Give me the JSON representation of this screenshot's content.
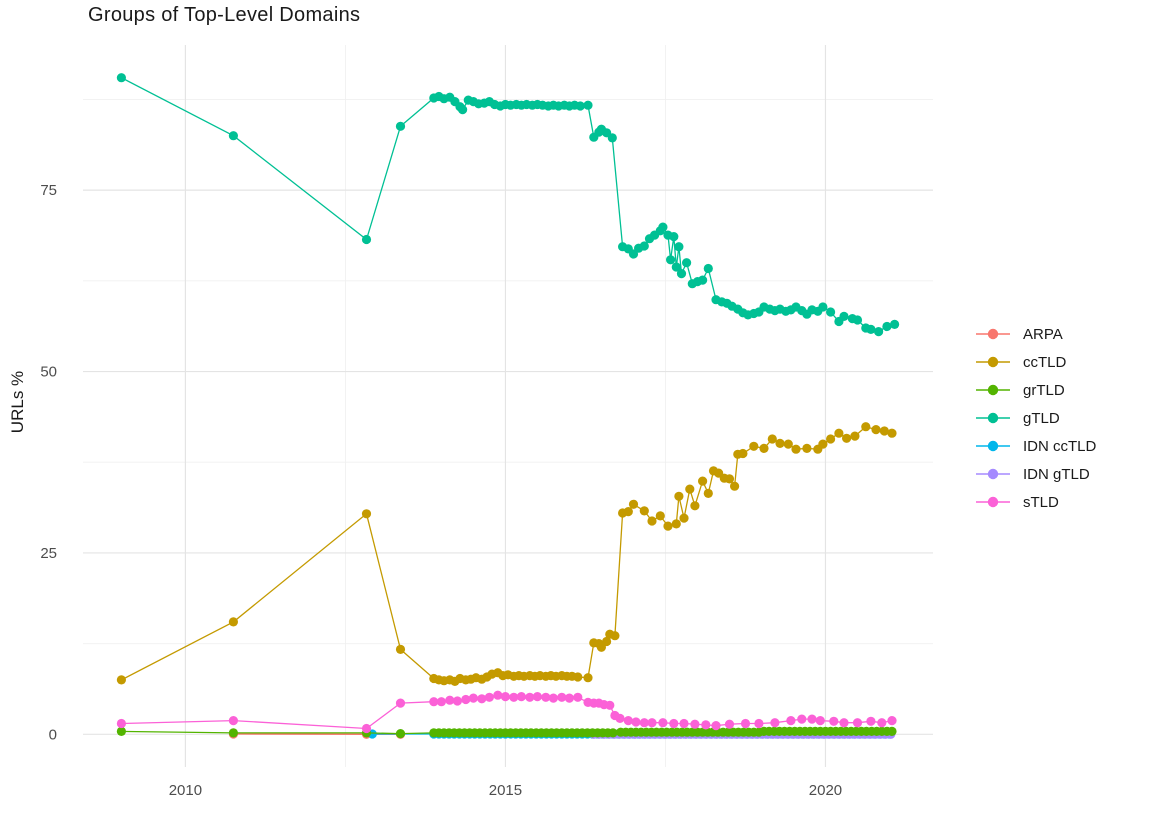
{
  "figure": {
    "background": "#FFFFFF",
    "panel_background": "#FFFFFF"
  },
  "chart_data": {
    "type": "line",
    "title": "Groups of Top-Level Domains",
    "xlabel": "",
    "ylabel": "URLs %",
    "x_ticks": [
      2010,
      2015,
      2020
    ],
    "x_minor_ticks": [
      2012.5,
      2017.5
    ],
    "y_ticks": [
      0,
      25,
      50,
      75
    ],
    "y_minor_ticks": [
      12.5,
      37.5,
      62.5,
      87.5
    ],
    "xlim": [
      2008.4,
      2021.68
    ],
    "ylim": [
      -4.5,
      95.0
    ],
    "grid": "major-and-minor",
    "grid_major_color": "#E4E4E4",
    "grid_minor_color": "#F0F0F0",
    "tick_label_color": "#4D4D4D",
    "legend_position": "right",
    "point_radius": 4.6,
    "draw_order": [
      "ARPA",
      "IDN ccTLD",
      "IDN gTLD",
      "grTLD",
      "ccTLD",
      "gTLD",
      "sTLD"
    ],
    "series": [
      {
        "name": "ARPA",
        "color": "#F8766D",
        "points": [
          [
            2010.75,
            0.05
          ],
          [
            2012.83,
            0.0
          ],
          [
            2013.36,
            0.0
          ]
        ]
      },
      {
        "name": "ccTLD",
        "color": "#C49A00",
        "points": [
          [
            2009,
            7.5
          ],
          [
            2010.75,
            15.5
          ],
          [
            2012.83,
            30.4
          ],
          [
            2013.36,
            11.7
          ],
          [
            2013.88,
            7.7
          ],
          [
            2013.96,
            7.5
          ],
          [
            2014.04,
            7.4
          ],
          [
            2014.13,
            7.5
          ],
          [
            2014.21,
            7.3
          ],
          [
            2014.29,
            7.7
          ],
          [
            2014.38,
            7.5
          ],
          [
            2014.46,
            7.6
          ],
          [
            2014.54,
            7.8
          ],
          [
            2014.63,
            7.6
          ],
          [
            2014.71,
            7.9
          ],
          [
            2014.79,
            8.3
          ],
          [
            2014.88,
            8.5
          ],
          [
            2014.96,
            8.1
          ],
          [
            2015.04,
            8.2
          ],
          [
            2015.13,
            8.0
          ],
          [
            2015.21,
            8.1
          ],
          [
            2015.29,
            8.0
          ],
          [
            2015.38,
            8.1
          ],
          [
            2015.46,
            8.0
          ],
          [
            2015.54,
            8.1
          ],
          [
            2015.63,
            8.0
          ],
          [
            2015.71,
            8.1
          ],
          [
            2015.79,
            8.0
          ],
          [
            2015.88,
            8.1
          ],
          [
            2015.96,
            8.0
          ],
          [
            2016.04,
            8.0
          ],
          [
            2016.13,
            7.9
          ],
          [
            2016.29,
            7.8
          ],
          [
            2016.38,
            12.6
          ],
          [
            2016.46,
            12.5
          ],
          [
            2016.5,
            12.0
          ],
          [
            2016.58,
            12.8
          ],
          [
            2016.63,
            13.8
          ],
          [
            2016.71,
            13.6
          ],
          [
            2016.83,
            30.5
          ],
          [
            2016.92,
            30.7
          ],
          [
            2017.0,
            31.7
          ],
          [
            2017.17,
            30.8
          ],
          [
            2017.29,
            29.4
          ],
          [
            2017.42,
            30.1
          ],
          [
            2017.54,
            28.7
          ],
          [
            2017.67,
            29.0
          ],
          [
            2017.71,
            32.8
          ],
          [
            2017.79,
            29.8
          ],
          [
            2017.88,
            33.8
          ],
          [
            2017.96,
            31.5
          ],
          [
            2018.08,
            34.9
          ],
          [
            2018.17,
            33.2
          ],
          [
            2018.25,
            36.3
          ],
          [
            2018.33,
            36.0
          ],
          [
            2018.42,
            35.3
          ],
          [
            2018.5,
            35.2
          ],
          [
            2018.58,
            34.2
          ],
          [
            2018.63,
            38.6
          ],
          [
            2018.71,
            38.7
          ],
          [
            2018.88,
            39.7
          ],
          [
            2019.04,
            39.4
          ],
          [
            2019.17,
            40.7
          ],
          [
            2019.29,
            40.1
          ],
          [
            2019.42,
            40.0
          ],
          [
            2019.54,
            39.3
          ],
          [
            2019.71,
            39.4
          ],
          [
            2019.88,
            39.3
          ],
          [
            2019.96,
            40.0
          ],
          [
            2020.08,
            40.7
          ],
          [
            2020.21,
            41.5
          ],
          [
            2020.33,
            40.8
          ],
          [
            2020.46,
            41.1
          ],
          [
            2020.63,
            42.4
          ],
          [
            2020.79,
            42.0
          ],
          [
            2020.92,
            41.8
          ],
          [
            2021.04,
            41.5
          ]
        ]
      },
      {
        "name": "grTLD",
        "color": "#53B400",
        "points": [
          [
            2009,
            0.4
          ],
          [
            2010.75,
            0.2
          ],
          [
            2012.83,
            0.2
          ],
          [
            2013.36,
            0.1
          ]
        ],
        "runs": [
          {
            "from": 2013.88,
            "to": 2016.72,
            "step": 0.08,
            "value": 0.2
          },
          {
            "from": 2016.8,
            "to": 2018.96,
            "step": 0.08,
            "value": 0.3
          },
          {
            "from": 2019.04,
            "to": 2021.04,
            "step": 0.08,
            "value": 0.4
          }
        ]
      },
      {
        "name": "gTLD",
        "color": "#00C094",
        "points": [
          [
            2009,
            90.5
          ],
          [
            2010.75,
            82.5
          ],
          [
            2012.83,
            68.2
          ],
          [
            2013.36,
            83.8
          ],
          [
            2013.88,
            87.7
          ],
          [
            2013.96,
            87.9
          ],
          [
            2014.04,
            87.6
          ],
          [
            2014.13,
            87.8
          ],
          [
            2014.21,
            87.2
          ],
          [
            2014.29,
            86.5
          ],
          [
            2014.33,
            86.1
          ],
          [
            2014.42,
            87.4
          ],
          [
            2014.5,
            87.2
          ],
          [
            2014.58,
            86.9
          ],
          [
            2014.67,
            87.0
          ],
          [
            2014.75,
            87.2
          ],
          [
            2014.83,
            86.8
          ],
          [
            2014.92,
            86.6
          ],
          [
            2015.0,
            86.8
          ],
          [
            2015.08,
            86.7
          ],
          [
            2015.17,
            86.8
          ],
          [
            2015.25,
            86.7
          ],
          [
            2015.33,
            86.8
          ],
          [
            2015.42,
            86.7
          ],
          [
            2015.5,
            86.8
          ],
          [
            2015.58,
            86.7
          ],
          [
            2015.67,
            86.6
          ],
          [
            2015.75,
            86.7
          ],
          [
            2015.83,
            86.6
          ],
          [
            2015.92,
            86.7
          ],
          [
            2016.0,
            86.6
          ],
          [
            2016.08,
            86.7
          ],
          [
            2016.17,
            86.6
          ],
          [
            2016.29,
            86.7
          ],
          [
            2016.38,
            82.3
          ],
          [
            2016.46,
            83.0
          ],
          [
            2016.5,
            83.4
          ],
          [
            2016.58,
            82.9
          ],
          [
            2016.67,
            82.2
          ],
          [
            2016.83,
            67.2
          ],
          [
            2016.92,
            66.9
          ],
          [
            2017.0,
            66.2
          ],
          [
            2017.08,
            67.0
          ],
          [
            2017.17,
            67.3
          ],
          [
            2017.25,
            68.3
          ],
          [
            2017.33,
            68.8
          ],
          [
            2017.42,
            69.4
          ],
          [
            2017.46,
            69.9
          ],
          [
            2017.54,
            68.8
          ],
          [
            2017.58,
            65.4
          ],
          [
            2017.63,
            68.6
          ],
          [
            2017.67,
            64.4
          ],
          [
            2017.71,
            67.2
          ],
          [
            2017.75,
            63.5
          ],
          [
            2017.83,
            65.0
          ],
          [
            2017.92,
            62.1
          ],
          [
            2018.0,
            62.4
          ],
          [
            2018.08,
            62.6
          ],
          [
            2018.17,
            64.2
          ],
          [
            2018.29,
            59.9
          ],
          [
            2018.38,
            59.6
          ],
          [
            2018.46,
            59.4
          ],
          [
            2018.54,
            59.0
          ],
          [
            2018.63,
            58.6
          ],
          [
            2018.71,
            58.1
          ],
          [
            2018.79,
            57.8
          ],
          [
            2018.88,
            58.0
          ],
          [
            2018.96,
            58.2
          ],
          [
            2019.04,
            58.9
          ],
          [
            2019.13,
            58.6
          ],
          [
            2019.21,
            58.4
          ],
          [
            2019.29,
            58.6
          ],
          [
            2019.38,
            58.3
          ],
          [
            2019.46,
            58.5
          ],
          [
            2019.54,
            58.9
          ],
          [
            2019.63,
            58.4
          ],
          [
            2019.71,
            57.9
          ],
          [
            2019.79,
            58.5
          ],
          [
            2019.88,
            58.3
          ],
          [
            2019.96,
            58.9
          ],
          [
            2020.08,
            58.2
          ],
          [
            2020.21,
            56.9
          ],
          [
            2020.29,
            57.6
          ],
          [
            2020.42,
            57.3
          ],
          [
            2020.5,
            57.1
          ],
          [
            2020.63,
            56.0
          ],
          [
            2020.71,
            55.8
          ],
          [
            2020.83,
            55.5
          ],
          [
            2020.96,
            56.2
          ],
          [
            2021.08,
            56.5
          ]
        ]
      },
      {
        "name": "IDN ccTLD",
        "color": "#00B6EB",
        "points": [
          [
            2012.92,
            0.05
          ]
        ],
        "runs": [
          {
            "from": 2013.88,
            "to": 2021.04,
            "step": 0.08,
            "value": 0.05
          }
        ]
      },
      {
        "name": "IDN gTLD",
        "color": "#A58AFF",
        "points": [],
        "runs": [
          {
            "from": 2016.38,
            "to": 2021.04,
            "step": 0.08,
            "value": 0.0
          }
        ]
      },
      {
        "name": "sTLD",
        "color": "#FB61D7",
        "points": [
          [
            2009,
            1.5
          ],
          [
            2010.75,
            1.9
          ],
          [
            2012.83,
            0.8
          ],
          [
            2013.36,
            4.3
          ],
          [
            2013.88,
            4.5
          ],
          [
            2014.0,
            4.5
          ],
          [
            2014.13,
            4.7
          ],
          [
            2014.25,
            4.6
          ],
          [
            2014.38,
            4.8
          ],
          [
            2014.5,
            5.0
          ],
          [
            2014.63,
            4.9
          ],
          [
            2014.75,
            5.1
          ],
          [
            2014.88,
            5.4
          ],
          [
            2015.0,
            5.2
          ],
          [
            2015.13,
            5.1
          ],
          [
            2015.25,
            5.2
          ],
          [
            2015.38,
            5.1
          ],
          [
            2015.5,
            5.2
          ],
          [
            2015.63,
            5.1
          ],
          [
            2015.75,
            5.0
          ],
          [
            2015.88,
            5.1
          ],
          [
            2016.0,
            5.0
          ],
          [
            2016.13,
            5.1
          ],
          [
            2016.29,
            4.4
          ],
          [
            2016.38,
            4.3
          ],
          [
            2016.46,
            4.3
          ],
          [
            2016.54,
            4.1
          ],
          [
            2016.63,
            4.0
          ],
          [
            2016.71,
            2.6
          ],
          [
            2016.79,
            2.2
          ],
          [
            2016.92,
            1.9
          ],
          [
            2017.04,
            1.7
          ],
          [
            2017.17,
            1.6
          ],
          [
            2017.29,
            1.6
          ],
          [
            2017.46,
            1.6
          ],
          [
            2017.63,
            1.5
          ],
          [
            2017.79,
            1.5
          ],
          [
            2017.96,
            1.4
          ],
          [
            2018.13,
            1.3
          ],
          [
            2018.29,
            1.2
          ],
          [
            2018.5,
            1.4
          ],
          [
            2018.75,
            1.5
          ],
          [
            2018.96,
            1.5
          ],
          [
            2019.21,
            1.6
          ],
          [
            2019.46,
            1.9
          ],
          [
            2019.63,
            2.1
          ],
          [
            2019.79,
            2.1
          ],
          [
            2019.92,
            1.9
          ],
          [
            2020.13,
            1.8
          ],
          [
            2020.29,
            1.6
          ],
          [
            2020.5,
            1.6
          ],
          [
            2020.71,
            1.8
          ],
          [
            2020.88,
            1.6
          ],
          [
            2021.04,
            1.9
          ]
        ]
      }
    ]
  }
}
